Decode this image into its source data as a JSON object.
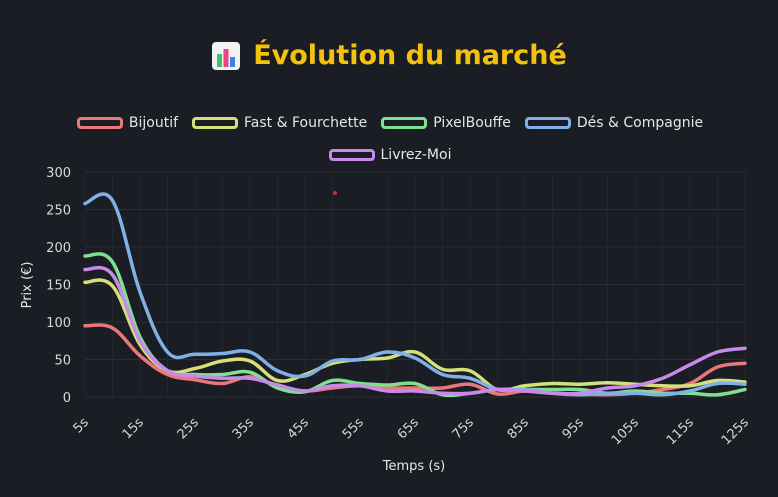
{
  "header": {
    "title": "Évolution du marché",
    "icon": "bar-chart-icon"
  },
  "chart_data": {
    "type": "line",
    "title": "Évolution du marché",
    "xlabel": "Temps (s)",
    "ylabel": "Prix (€)",
    "x": [
      "5s",
      "10s",
      "15s",
      "20s",
      "25s",
      "30s",
      "35s",
      "40s",
      "45s",
      "50s",
      "55s",
      "60s",
      "65s",
      "70s",
      "75s",
      "80s",
      "85s",
      "90s",
      "95s",
      "100s",
      "105s",
      "110s",
      "115s",
      "120s",
      "125s"
    ],
    "x_tick_labels": [
      "5s",
      "15s",
      "25s",
      "35s",
      "45s",
      "55s",
      "65s",
      "75s",
      "85s",
      "95s",
      "105s",
      "115s",
      "125s"
    ],
    "ylim": [
      0,
      300
    ],
    "y_ticks": [
      0,
      50,
      100,
      150,
      200,
      250,
      300
    ],
    "grid": true,
    "legend_position": "top",
    "series": [
      {
        "name": "Bijoutif",
        "color": "#e8787a",
        "values": [
          95,
          92,
          55,
          30,
          23,
          18,
          27,
          15,
          8,
          12,
          15,
          12,
          12,
          12,
          17,
          4,
          8,
          5,
          4,
          3,
          5,
          10,
          18,
          40,
          45
        ]
      },
      {
        "name": "Fast & Fourchette",
        "color": "#d6e07a",
        "values": [
          153,
          148,
          70,
          35,
          38,
          48,
          48,
          22,
          30,
          45,
          50,
          52,
          60,
          37,
          35,
          10,
          15,
          18,
          17,
          19,
          17,
          15,
          15,
          22,
          20
        ]
      },
      {
        "name": "PixelBouffe",
        "color": "#7fe08f",
        "values": [
          188,
          180,
          80,
          35,
          30,
          30,
          33,
          12,
          7,
          22,
          18,
          16,
          18,
          3,
          5,
          10,
          10,
          10,
          10,
          5,
          8,
          5,
          5,
          3,
          10
        ]
      },
      {
        "name": "Dés & Compagnie",
        "color": "#7fb0e6",
        "values": [
          258,
          262,
          140,
          60,
          57,
          58,
          60,
          35,
          28,
          48,
          50,
          60,
          52,
          30,
          25,
          10,
          10,
          5,
          3,
          5,
          5,
          3,
          8,
          18,
          17
        ]
      },
      {
        "name": "Livrez-Moi",
        "color": "#c88ae8",
        "values": [
          170,
          163,
          75,
          35,
          28,
          25,
          25,
          16,
          8,
          15,
          15,
          8,
          8,
          5,
          5,
          10,
          8,
          5,
          5,
          12,
          15,
          25,
          43,
          60,
          65
        ]
      }
    ]
  }
}
